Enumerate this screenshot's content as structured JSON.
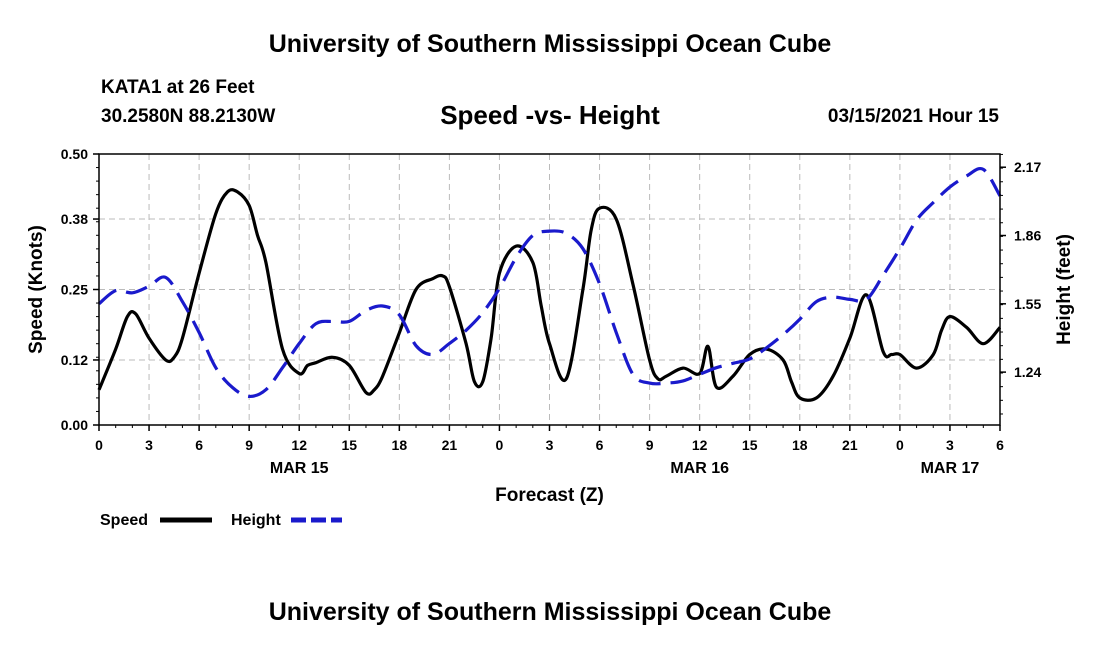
{
  "header": {
    "title": "University of Southern Mississippi Ocean Cube",
    "station": "KATA1 at 26 Feet",
    "coordinates": "30.2580N 88.2130W",
    "subtitle": "Speed -vs- Height",
    "datetime": "03/15/2021 Hour 15"
  },
  "footer": {
    "title": "University of Southern Mississippi Ocean Cube"
  },
  "chart_data": {
    "type": "line",
    "title": "Speed -vs- Height",
    "xlabel": "Forecast (Z)",
    "ylabel": "Speed (Knots)",
    "y2label": "Height (feet)",
    "xlim": [
      0,
      54
    ],
    "ylim": [
      0,
      0.5
    ],
    "y2lim": [
      1.0,
      2.23
    ],
    "x_ticks": [
      0,
      3,
      6,
      9,
      12,
      15,
      18,
      21,
      24,
      27,
      30,
      33,
      36,
      39,
      42,
      45,
      48,
      51,
      54
    ],
    "x_tick_labels": [
      "0",
      "3",
      "6",
      "9",
      "12",
      "15",
      "18",
      "21",
      "0",
      "3",
      "6",
      "9",
      "12",
      "15",
      "18",
      "21",
      "0",
      "3",
      "6"
    ],
    "date_labels": [
      {
        "x": 12,
        "label": "MAR 15"
      },
      {
        "x": 36,
        "label": "MAR 16"
      },
      {
        "x": 51,
        "label": "MAR 17"
      }
    ],
    "y_ticks": [
      0.0,
      0.12,
      0.25,
      0.38,
      0.5
    ],
    "y_tick_labels": [
      "0.00",
      "0.12",
      "0.25",
      "0.38",
      "0.50"
    ],
    "y2_ticks": [
      1.24,
      1.55,
      1.86,
      2.17
    ],
    "y2_tick_labels": [
      "1.24",
      "1.55",
      "1.86",
      "2.17"
    ],
    "grid": true,
    "legend_position": "bottom-left",
    "series": [
      {
        "name": "Speed",
        "axis": "left",
        "color": "#000000",
        "style": "solid",
        "x": [
          0,
          1,
          1.7,
          2.2,
          3,
          4,
          4.5,
          5,
          6,
          7,
          7.7,
          8.3,
          9,
          9.5,
          10,
          11,
          12,
          12.5,
          13,
          14,
          15,
          16,
          16.5,
          17,
          18,
          19,
          20,
          20.6,
          21,
          22,
          22.5,
          23,
          23.5,
          24,
          25,
          26,
          26.5,
          27,
          28,
          29,
          29.5,
          30,
          31,
          32,
          33,
          33.5,
          34,
          35,
          36,
          36.5,
          37,
          38,
          39,
          40,
          41,
          41.5,
          42,
          43,
          44,
          45,
          46,
          47,
          47.5,
          48,
          49,
          50,
          50.5,
          51,
          52,
          53,
          54
        ],
        "values": [
          0.065,
          0.14,
          0.2,
          0.205,
          0.16,
          0.12,
          0.125,
          0.16,
          0.28,
          0.39,
          0.43,
          0.43,
          0.405,
          0.35,
          0.3,
          0.14,
          0.095,
          0.11,
          0.115,
          0.125,
          0.11,
          0.06,
          0.065,
          0.09,
          0.17,
          0.25,
          0.27,
          0.275,
          0.255,
          0.15,
          0.08,
          0.08,
          0.16,
          0.28,
          0.33,
          0.3,
          0.22,
          0.15,
          0.085,
          0.25,
          0.36,
          0.4,
          0.38,
          0.26,
          0.12,
          0.085,
          0.09,
          0.105,
          0.095,
          0.145,
          0.07,
          0.09,
          0.13,
          0.14,
          0.12,
          0.08,
          0.05,
          0.05,
          0.09,
          0.16,
          0.24,
          0.135,
          0.13,
          0.13,
          0.105,
          0.13,
          0.175,
          0.2,
          0.18,
          0.15,
          0.18
        ]
      },
      {
        "name": "Height",
        "axis": "right",
        "color": "#1a1acc",
        "style": "dashed",
        "x": [
          0,
          1,
          2,
          3,
          4,
          5,
          6,
          7,
          8,
          9,
          10,
          11,
          12,
          13,
          14,
          15,
          16,
          17,
          18,
          19,
          20,
          21,
          22,
          23,
          24,
          25,
          26,
          27,
          28,
          29,
          30,
          31,
          32,
          33,
          34,
          35,
          36,
          37,
          38,
          39,
          40,
          41,
          42,
          43,
          44,
          45,
          46,
          47,
          48,
          49,
          50,
          51,
          52,
          53,
          54
        ],
        "values": [
          1.55,
          1.61,
          1.6,
          1.63,
          1.67,
          1.56,
          1.42,
          1.26,
          1.17,
          1.13,
          1.16,
          1.26,
          1.37,
          1.46,
          1.47,
          1.47,
          1.52,
          1.54,
          1.5,
          1.36,
          1.32,
          1.37,
          1.43,
          1.51,
          1.62,
          1.76,
          1.86,
          1.88,
          1.87,
          1.8,
          1.64,
          1.42,
          1.23,
          1.19,
          1.19,
          1.2,
          1.23,
          1.26,
          1.28,
          1.3,
          1.35,
          1.41,
          1.48,
          1.56,
          1.58,
          1.57,
          1.57,
          1.68,
          1.8,
          1.93,
          2.01,
          2.08,
          2.13,
          2.16,
          2.04
        ]
      }
    ]
  }
}
